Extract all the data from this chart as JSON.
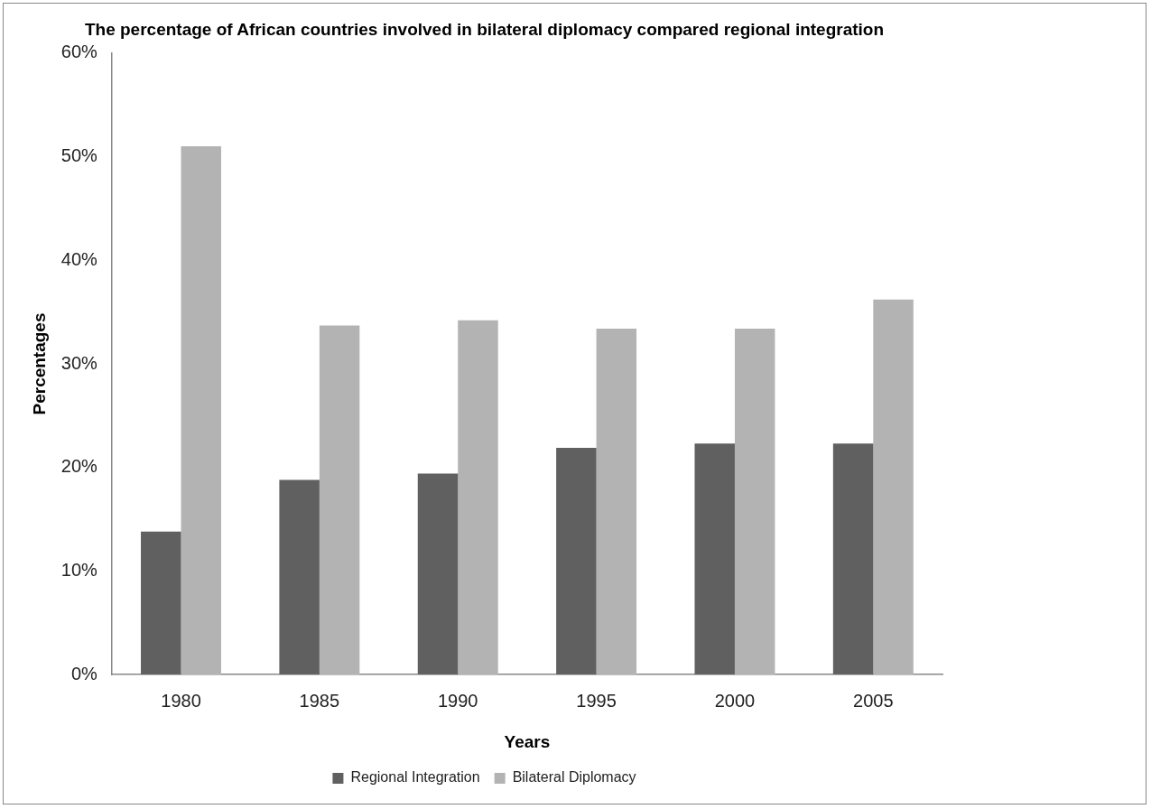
{
  "chart_data": {
    "type": "bar",
    "title": "The percentage of African countries involved in bilateral diplomacy compared regional integration",
    "xlabel": "Years",
    "ylabel": "Percentages",
    "categories": [
      "1980",
      "1985",
      "1990",
      "1995",
      "2000",
      "2005"
    ],
    "series": [
      {
        "name": "Regional Integration",
        "color": "#606060",
        "values": [
          13.8,
          18.8,
          19.4,
          21.9,
          22.3,
          22.3
        ]
      },
      {
        "name": "Bilateral Diplomacy",
        "color": "#b3b3b3",
        "values": [
          51.0,
          33.7,
          34.2,
          33.4,
          33.4,
          36.2
        ]
      }
    ],
    "ylim": [
      0,
      60
    ],
    "yticks": [
      {
        "value": 0,
        "label": "0%"
      },
      {
        "value": 10,
        "label": "10%"
      },
      {
        "value": 20,
        "label": "20%"
      },
      {
        "value": 30,
        "label": "30%"
      },
      {
        "value": 40,
        "label": "40%"
      },
      {
        "value": 50,
        "label": "50%"
      },
      {
        "value": 60,
        "label": "60%"
      }
    ],
    "grid": false,
    "legend": "bottom"
  }
}
